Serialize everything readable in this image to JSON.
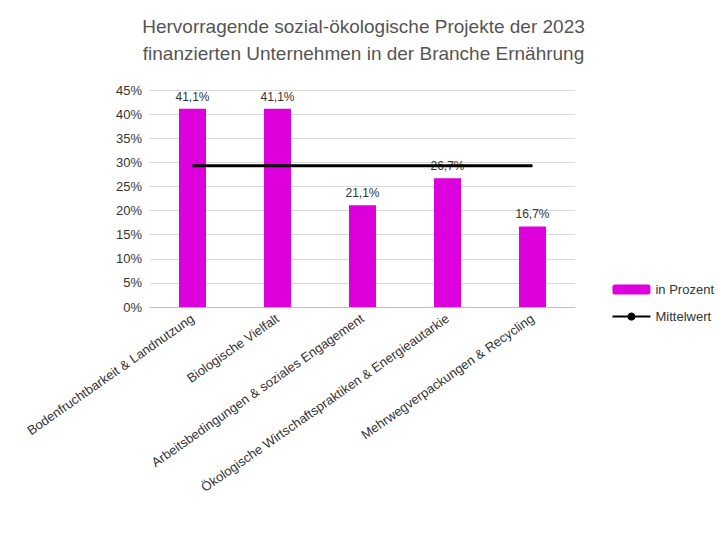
{
  "chart_data": {
    "type": "bar",
    "title": "Hervorragende sozial-ökologische Projekte der 2023\nfinanzierten Unternehmen in der Branche Ernährung",
    "categories": [
      "Bodenfruchtbarkeit & Landnutzung",
      "Biologische Vielfalt",
      "Arbeitsbedingungen & soziales Engagement",
      "Ökologische Wirtschaftspraktiken & Energieautarkie",
      "Mehrwegverpackungen & Recycling"
    ],
    "series": [
      {
        "name": "in Prozent",
        "type": "bar",
        "color": "#dd00dd",
        "values": [
          41.1,
          41.1,
          21.1,
          26.7,
          16.7
        ],
        "value_labels": [
          "41,1%",
          "41,1%",
          "21,1%",
          "26,7%",
          "16,7%"
        ]
      },
      {
        "name": "Mittelwert",
        "type": "line",
        "color": "#000000",
        "values": [
          29.3,
          29.3,
          29.3,
          29.3,
          29.3
        ]
      }
    ],
    "ylim": [
      0,
      45
    ],
    "yticks": [
      {
        "value": 0,
        "label": "0%"
      },
      {
        "value": 5,
        "label": "5%"
      },
      {
        "value": 10,
        "label": "10%"
      },
      {
        "value": 15,
        "label": "15%"
      },
      {
        "value": 20,
        "label": "20%"
      },
      {
        "value": 25,
        "label": "25%"
      },
      {
        "value": 30,
        "label": "30%"
      },
      {
        "value": 35,
        "label": "35%"
      },
      {
        "value": 40,
        "label": "40%"
      },
      {
        "value": 45,
        "label": "45%"
      }
    ],
    "grid": true,
    "legend": "right",
    "data_labels": true
  }
}
